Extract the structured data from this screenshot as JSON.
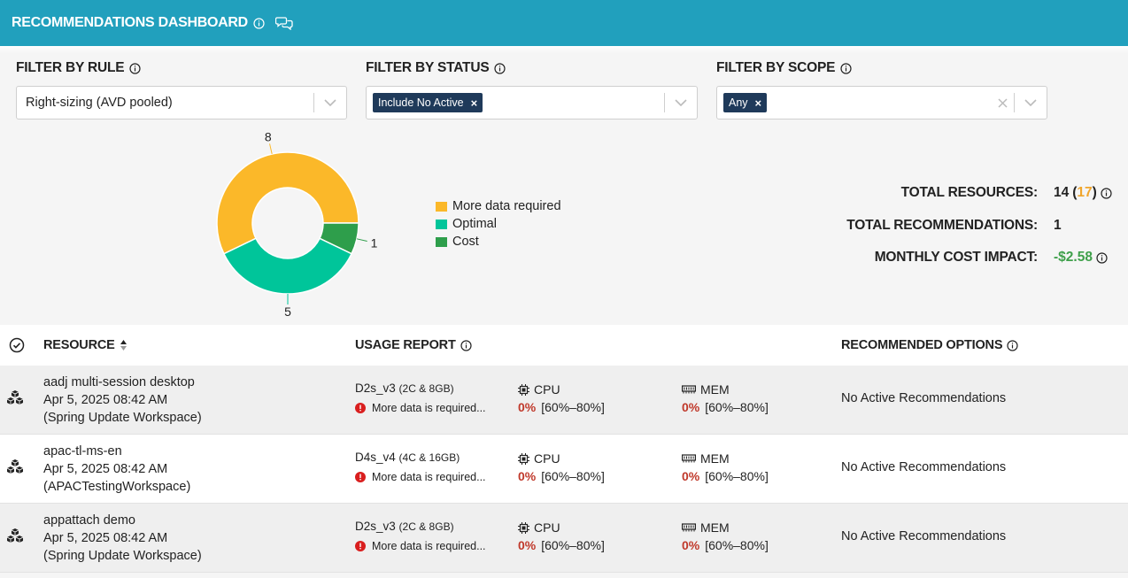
{
  "header": {
    "title": "RECOMMENDATIONS DASHBOARD",
    "info_icon": "info-icon",
    "chat_icon": "chat-bubbles-icon"
  },
  "filters": {
    "rule": {
      "label": "FILTER BY RULE",
      "value": "Right-sizing (AVD pooled)"
    },
    "status": {
      "label": "FILTER BY STATUS",
      "chip": "Include No Active"
    },
    "scope": {
      "label": "FILTER BY SCOPE",
      "chip": "Any"
    }
  },
  "chart_data": {
    "type": "pie",
    "categories": [
      "More data required",
      "Optimal",
      "Cost"
    ],
    "values": [
      8,
      5,
      1
    ],
    "colors": [
      "#fbb829",
      "#00c59a",
      "#2e9e4b"
    ],
    "data_labels": [
      "8",
      "5",
      "1"
    ]
  },
  "stats": {
    "total_resources_label": "TOTAL RESOURCES:",
    "total_resources_value": "14",
    "total_resources_extra": "17",
    "total_recommendations_label": "TOTAL RECOMMENDATIONS:",
    "total_recommendations_value": "1",
    "monthly_cost_label": "MONTHLY COST IMPACT:",
    "monthly_cost_value": "-$2.58"
  },
  "table": {
    "columns": {
      "resource": "RESOURCE",
      "usage": "USAGE REPORT",
      "recommended": "RECOMMENDED OPTIONS"
    },
    "rows": [
      {
        "name": "aadj multi-session desktop",
        "date": "Apr 5, 2025 08:42 AM",
        "workspace": "(Spring Update Workspace)",
        "vm": "D2s_v3",
        "vm_spec": "(2C & 8GB)",
        "warning": "More data is required...",
        "cpu_label": "CPU",
        "cpu_pct": "0%",
        "cpu_range": "[60%–80%]",
        "mem_label": "MEM",
        "mem_pct": "0%",
        "mem_range": "[60%–80%]",
        "recommendation": "No Active Recommendations"
      },
      {
        "name": "apac-tl-ms-en",
        "date": "Apr 5, 2025 08:42 AM",
        "workspace": "(APACTestingWorkspace)",
        "vm": "D4s_v4",
        "vm_spec": "(4C & 16GB)",
        "warning": "More data is required...",
        "cpu_label": "CPU",
        "cpu_pct": "0%",
        "cpu_range": "[60%–80%]",
        "mem_label": "MEM",
        "mem_pct": "0%",
        "mem_range": "[60%–80%]",
        "recommendation": "No Active Recommendations"
      },
      {
        "name": "appattach demo",
        "date": "Apr 5, 2025 08:42 AM",
        "workspace": "(Spring Update Workspace)",
        "vm": "D2s_v3",
        "vm_spec": "(2C & 8GB)",
        "warning": "More data is required...",
        "cpu_label": "CPU",
        "cpu_pct": "0%",
        "cpu_range": "[60%–80%]",
        "mem_label": "MEM",
        "mem_pct": "0%",
        "mem_range": "[60%–80%]",
        "recommendation": "No Active Recommendations"
      }
    ]
  }
}
